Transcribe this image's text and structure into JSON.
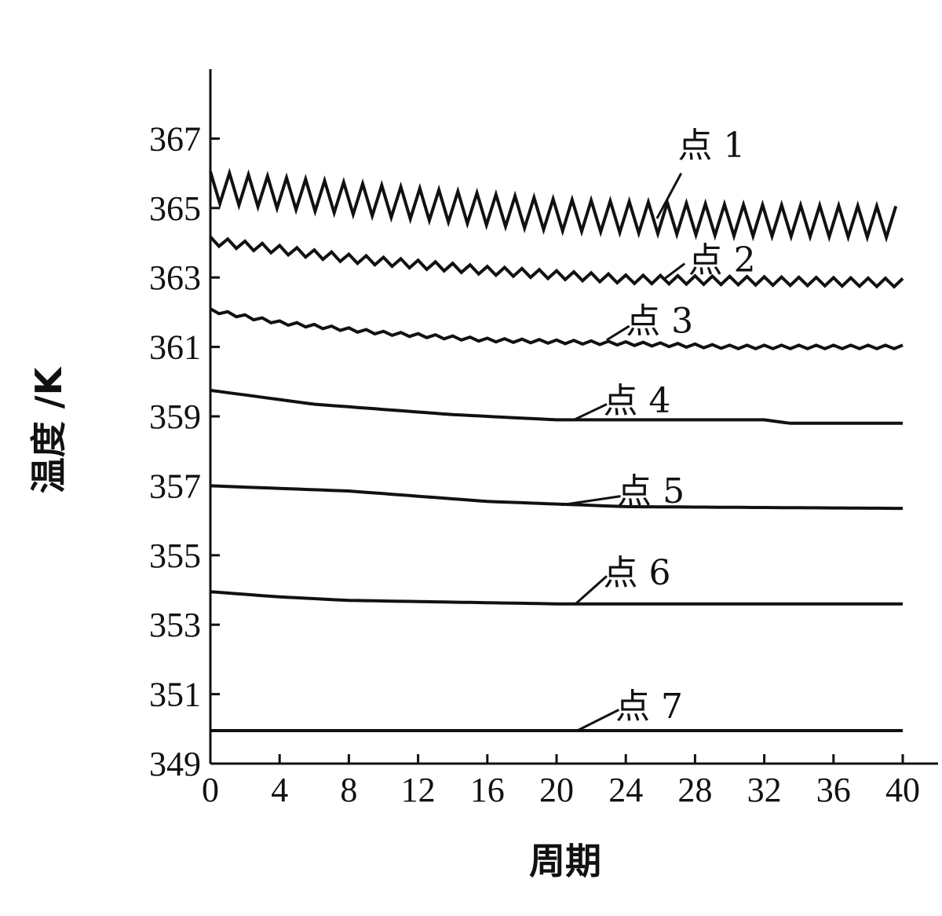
{
  "chart_data": {
    "type": "line",
    "title": "",
    "xlabel": "周期",
    "ylabel": "温度 /K",
    "xlim": [
      0,
      40
    ],
    "ylim": [
      349,
      369
    ],
    "xticks": [
      0,
      4,
      8,
      12,
      16,
      20,
      24,
      28,
      32,
      36,
      40
    ],
    "yticks": [
      349,
      351,
      353,
      355,
      357,
      359,
      361,
      363,
      365,
      367
    ],
    "grid": false,
    "legend": "none",
    "line_color": "#111111",
    "series": [
      {
        "name": "点 1",
        "label_anchor": [
          27,
          366.8
        ],
        "pointer": [
          [
            27.2,
            366.0
          ],
          [
            25.8,
            364.7
          ]
        ],
        "mean": [
          [
            0,
            365.6
          ],
          [
            10,
            365.2
          ],
          [
            20,
            364.8
          ],
          [
            30,
            364.65
          ],
          [
            40,
            364.6
          ]
        ],
        "oscillation": {
          "amplitude": 0.45,
          "period": 1.1
        }
      },
      {
        "name": "点 2",
        "label_anchor": [
          27.6,
          363.5
        ],
        "pointer": [
          [
            27.4,
            363.4
          ],
          [
            26.2,
            362.95
          ]
        ],
        "mean": [
          [
            0,
            364.05
          ],
          [
            8,
            363.55
          ],
          [
            16,
            363.2
          ],
          [
            24,
            362.95
          ],
          [
            40,
            362.85
          ]
        ],
        "oscillation": {
          "amplitude": 0.12,
          "period": 1.0
        }
      },
      {
        "name": "点 3",
        "label_anchor": [
          24.0,
          361.75
        ],
        "pointer": [
          [
            24.2,
            361.6
          ],
          [
            22.9,
            361.2
          ]
        ],
        "mean": [
          [
            0,
            362.05
          ],
          [
            4,
            361.7
          ],
          [
            10,
            361.4
          ],
          [
            16,
            361.2
          ],
          [
            24,
            361.1
          ],
          [
            30,
            361.0
          ],
          [
            40,
            361.0
          ]
        ],
        "oscillation": {
          "amplitude": 0.05,
          "period": 1.0
        }
      },
      {
        "name": "点 4",
        "label_anchor": [
          22.7,
          359.45
        ],
        "pointer": [
          [
            22.9,
            359.35
          ],
          [
            21.0,
            358.9
          ]
        ],
        "mean": [
          [
            0,
            359.75
          ],
          [
            6,
            359.35
          ],
          [
            14,
            359.05
          ],
          [
            20,
            358.9
          ],
          [
            32,
            358.9
          ],
          [
            33.5,
            358.8
          ],
          [
            40,
            358.8
          ]
        ],
        "oscillation": {
          "amplitude": 0.0,
          "period": 1.0
        }
      },
      {
        "name": "点 5",
        "label_anchor": [
          23.5,
          356.85
        ],
        "pointer": [
          [
            23.7,
            356.7
          ],
          [
            20.3,
            356.45
          ]
        ],
        "mean": [
          [
            0,
            357.0
          ],
          [
            8,
            356.85
          ],
          [
            16,
            356.55
          ],
          [
            24,
            356.4
          ],
          [
            40,
            356.35
          ]
        ],
        "oscillation": {
          "amplitude": 0.0,
          "period": 1.0
        }
      },
      {
        "name": "点 6",
        "label_anchor": [
          22.7,
          354.5
        ],
        "pointer": [
          [
            22.9,
            354.4
          ],
          [
            21.1,
            353.6
          ]
        ],
        "mean": [
          [
            0,
            353.95
          ],
          [
            4,
            353.8
          ],
          [
            8,
            353.7
          ],
          [
            14,
            353.65
          ],
          [
            20,
            353.6
          ],
          [
            40,
            353.6
          ]
        ],
        "oscillation": {
          "amplitude": 0.0,
          "period": 1.0
        }
      },
      {
        "name": "点 7",
        "label_anchor": [
          23.4,
          350.65
        ],
        "pointer": [
          [
            23.6,
            350.55
          ],
          [
            21.2,
            349.95
          ]
        ],
        "mean": [
          [
            0,
            349.95
          ],
          [
            40,
            349.95
          ]
        ],
        "oscillation": {
          "amplitude": 0.0,
          "period": 1.0
        }
      }
    ]
  }
}
